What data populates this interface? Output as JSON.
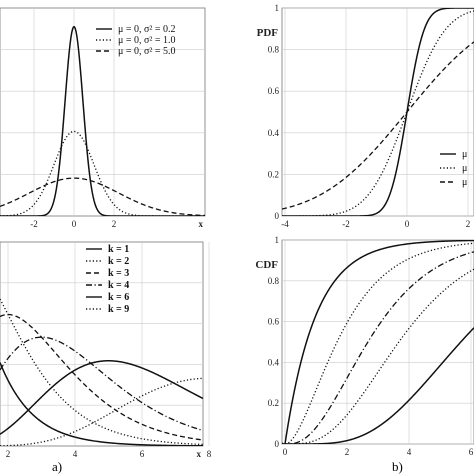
{
  "figure": {
    "caption_a": "a)",
    "caption_b": "b)"
  },
  "chart_data": [
    {
      "id": "normal-pdf",
      "type": "line",
      "x_axis_label": "x",
      "xlim": [
        -5,
        5
      ],
      "ylim": [
        0,
        1
      ],
      "x_ticks": [
        "-2",
        "0",
        "2"
      ],
      "grid": true,
      "legend_position": "top-right",
      "series": [
        {
          "name": "μ = 0,   σ² = 0.2",
          "style": "solid",
          "mu": 0,
          "var": 0.2
        },
        {
          "name": "μ = 0,   σ² = 1.0",
          "style": "dotted",
          "mu": 0,
          "var": 1.0
        },
        {
          "name": "μ = 0,   σ² = 5.0",
          "style": "dashed",
          "mu": 0,
          "var": 5.0
        }
      ]
    },
    {
      "id": "normal-cdf",
      "type": "line",
      "y_axis_label": "PDF",
      "xlim": [
        -5,
        3
      ],
      "ylim": [
        0,
        1
      ],
      "x_ticks": [
        "-4",
        "-2",
        "0",
        "2"
      ],
      "y_ticks": [
        "0",
        "0.2",
        "0.4",
        "0.6",
        "0.8",
        "1"
      ],
      "grid": true,
      "legend_position": "bottom-right",
      "series": [
        {
          "name": "μ",
          "style": "solid",
          "mu": 0,
          "var": 0.2
        },
        {
          "name": "μ",
          "style": "dotted",
          "mu": 0,
          "var": 1.0
        },
        {
          "name": "μ",
          "style": "dashed",
          "mu": 0,
          "var": 5.0
        }
      ]
    },
    {
      "id": "erlang-pdf",
      "type": "line",
      "x_axis_label": "x",
      "xlim": [
        0,
        8
      ],
      "ylim": [
        0,
        1
      ],
      "x_ticks": [
        "2",
        "4",
        "6",
        "8"
      ],
      "grid": true,
      "legend_position": "top-right",
      "series": [
        {
          "name": "k = 1",
          "style": "solid",
          "k": 1
        },
        {
          "name": "k = 2",
          "style": "dotted",
          "k": 2
        },
        {
          "name": "k = 3",
          "style": "dashed",
          "k": 3
        },
        {
          "name": "k = 4",
          "style": "dashdot",
          "k": 4
        },
        {
          "name": "k = 6",
          "style": "solid",
          "k": 6
        },
        {
          "name": "k = 9",
          "style": "dotted",
          "k": 9
        }
      ]
    },
    {
      "id": "erlang-cdf",
      "type": "line",
      "y_axis_label": "CDF",
      "xlim": [
        0,
        8
      ],
      "ylim": [
        0,
        1
      ],
      "x_ticks": [
        "0",
        "2",
        "4",
        "6"
      ],
      "y_ticks": [
        "0",
        "0.2",
        "0.4",
        "0.6",
        "0.8",
        "1"
      ],
      "grid": true,
      "series": [
        {
          "style": "solid",
          "k": 1
        },
        {
          "style": "dotted",
          "k": 2
        },
        {
          "style": "dashdot",
          "k": 3
        },
        {
          "style": "dotted",
          "k": 4
        },
        {
          "style": "solid",
          "k": 6
        }
      ]
    }
  ]
}
